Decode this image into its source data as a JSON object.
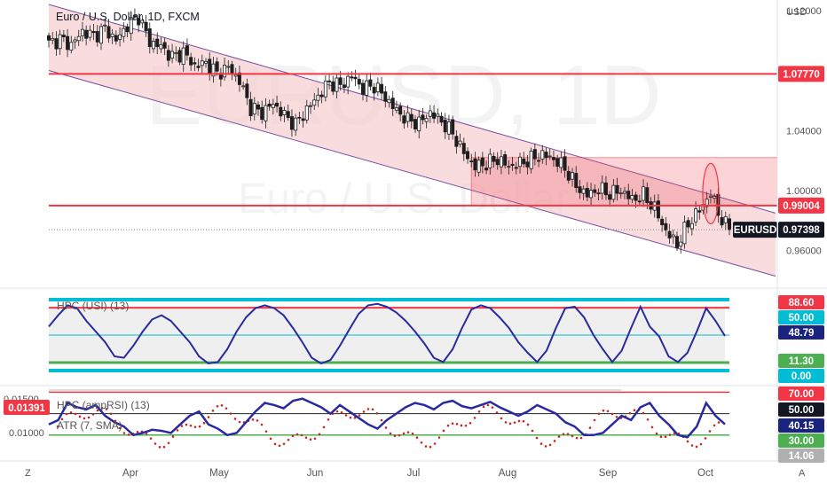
{
  "header": {
    "symbol_title": "Euro / U.S. Dollar, 1D, FXCM",
    "currency": "USD"
  },
  "watermark": {
    "big": "EURUSD, 1D",
    "small": "Euro / U.S. Dollar"
  },
  "colors": {
    "channel_fill": "#f4c9cc",
    "channel_line": "#7b4fa0",
    "red_line": "#f23645",
    "candle": "#1e1e1e",
    "cyan": "#00bcd4",
    "green": "#4caf50",
    "blue_osc": "#2a2aa0",
    "dots": "#c62828"
  },
  "chart_data": [
    {
      "type": "candlestick",
      "title": "Euro / U.S. Dollar, 1D, FXCM",
      "ylabel": "USD",
      "y_ticks": [
        "1.12000",
        "1.04000",
        "1.00000",
        "0.96000"
      ],
      "x_ticks": [
        "Apr",
        "May",
        "Jun",
        "Jul",
        "Aug",
        "Sep",
        "Oct"
      ],
      "ylim": [
        0.938,
        1.124
      ],
      "horizontal_levels": [
        {
          "label": "1.07770",
          "value": 1.0777
        },
        {
          "label": "0.99004",
          "value": 0.99004
        }
      ],
      "last_price": {
        "symbol": "EURUSD",
        "label": "0.97398",
        "value": 0.97398
      },
      "close_path": [
        [
          0,
          1.098
        ],
        [
          3,
          1.101
        ],
        [
          6,
          1.097
        ],
        [
          9,
          1.106
        ],
        [
          12,
          1.103
        ],
        [
          15,
          1.108
        ],
        [
          18,
          1.1
        ],
        [
          21,
          1.11
        ],
        [
          24,
          1.116
        ],
        [
          27,
          1.099
        ],
        [
          30,
          1.096
        ],
        [
          33,
          1.089
        ],
        [
          36,
          1.092
        ],
        [
          39,
          1.083
        ],
        [
          42,
          1.085
        ],
        [
          45,
          1.078
        ],
        [
          48,
          1.082
        ],
        [
          51,
          1.073
        ],
        [
          54,
          1.055
        ],
        [
          57,
          1.052
        ],
        [
          60,
          1.058
        ],
        [
          63,
          1.05
        ],
        [
          66,
          1.044
        ],
        [
          69,
          1.054
        ],
        [
          72,
          1.063
        ],
        [
          75,
          1.072
        ],
        [
          78,
          1.07
        ],
        [
          81,
          1.076
        ],
        [
          84,
          1.068
        ],
        [
          87,
          1.07
        ],
        [
          90,
          1.062
        ],
        [
          93,
          1.053
        ],
        [
          96,
          1.047
        ],
        [
          99,
          1.045
        ],
        [
          102,
          1.052
        ],
        [
          105,
          1.046
        ],
        [
          108,
          1.038
        ],
        [
          111,
          1.025
        ],
        [
          114,
          1.016
        ],
        [
          117,
          1.018
        ],
        [
          120,
          1.021
        ],
        [
          123,
          1.016
        ],
        [
          126,
          1.018
        ],
        [
          129,
          1.021
        ],
        [
          132,
          1.024
        ],
        [
          135,
          1.021
        ],
        [
          138,
          1.015
        ],
        [
          141,
          1.003
        ],
        [
          144,
          0.997
        ],
        [
          147,
          1.001
        ],
        [
          150,
          0.998
        ],
        [
          153,
          1.0
        ],
        [
          156,
          0.994
        ],
        [
          159,
          0.997
        ],
        [
          162,
          0.988
        ],
        [
          165,
          0.973
        ],
        [
          168,
          0.964
        ],
        [
          171,
          0.978
        ],
        [
          174,
          0.987
        ],
        [
          177,
          0.998
        ],
        [
          180,
          0.98
        ],
        [
          182,
          0.97398
        ]
      ]
    },
    {
      "type": "line",
      "title": "HPC (USI) (13)",
      "levels": [
        "88.60",
        "50.00",
        "48.79",
        "11.30",
        "0.00"
      ],
      "ylim": [
        0,
        100
      ],
      "series": [
        {
          "name": "HPC (USI) (13)",
          "values": [
            62,
            78,
            92,
            88,
            70,
            55,
            40,
            20,
            18,
            35,
            55,
            72,
            78,
            70,
            55,
            40,
            20,
            10,
            12,
            30,
            55,
            75,
            88,
            92,
            88,
            78,
            60,
            40,
            18,
            10,
            15,
            35,
            58,
            80,
            92,
            94,
            90,
            82,
            70,
            55,
            38,
            18,
            12,
            30,
            60,
            86,
            92,
            88,
            75,
            60,
            40,
            25,
            12,
            28,
            60,
            88,
            90,
            75,
            50,
            30,
            12,
            28,
            60,
            90,
            62,
            48,
            20,
            12,
            25,
            55,
            88,
            70,
            48.79
          ]
        }
      ]
    },
    {
      "type": "line",
      "title": "HPC (ampRSI) (13)",
      "levels": [
        "70.00",
        "50.00",
        "40.15",
        "30.00",
        "14.06"
      ],
      "ylim": [
        10,
        72
      ],
      "series": [
        {
          "name": "HPC (ampRSI) (13)",
          "values": [
            40,
            44,
            60,
            56,
            54,
            58,
            48,
            42,
            38,
            30,
            32,
            35,
            34,
            32,
            40,
            48,
            52,
            40,
            36,
            30,
            32,
            42,
            52,
            60,
            58,
            55,
            62,
            64,
            60,
            56,
            50,
            58,
            52,
            46,
            40,
            36,
            44,
            50,
            56,
            60,
            58,
            54,
            60,
            62,
            57,
            55,
            58,
            61,
            56,
            52,
            48,
            52,
            58,
            54,
            50,
            42,
            38,
            30,
            30,
            32,
            40,
            48,
            44,
            56,
            60,
            48,
            40,
            30,
            28,
            38,
            60,
            48,
            40.15
          ]
        }
      ]
    },
    {
      "type": "line",
      "title": "ATR (7, SMA)",
      "y_ticks": [
        "0.01500",
        "0.01000"
      ],
      "last_price": {
        "label": "0.01391",
        "value": 0.01391
      },
      "series": [
        {
          "name": "ATR (7, SMA)",
          "values": []
        }
      ]
    }
  ]
}
